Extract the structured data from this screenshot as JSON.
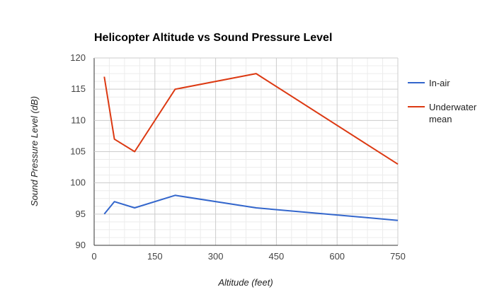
{
  "chart_data": {
    "type": "line",
    "title": "Helicopter Altitude vs Sound Pressure Level",
    "xlabel": "Altitude (feet)",
    "ylabel": "Sound Pressure Level (dB)",
    "xlim": [
      0,
      750
    ],
    "ylim": [
      90,
      120
    ],
    "xticks": [
      0,
      150,
      300,
      450,
      600,
      750
    ],
    "yticks": [
      90,
      95,
      100,
      105,
      110,
      115,
      120
    ],
    "grid": true,
    "legend_position": "right",
    "series": [
      {
        "name": "In-air",
        "color": "#3366cc",
        "x": [
          25,
          50,
          100,
          200,
          400,
          750
        ],
        "y": [
          95,
          97,
          96,
          98,
          96,
          94
        ]
      },
      {
        "name": "Underwater mean",
        "name_lines": [
          "Underwater",
          "mean"
        ],
        "color": "#dc3912",
        "x": [
          25,
          50,
          100,
          200,
          400,
          750
        ],
        "y": [
          117,
          107,
          105,
          115,
          117.5,
          103
        ]
      }
    ]
  }
}
